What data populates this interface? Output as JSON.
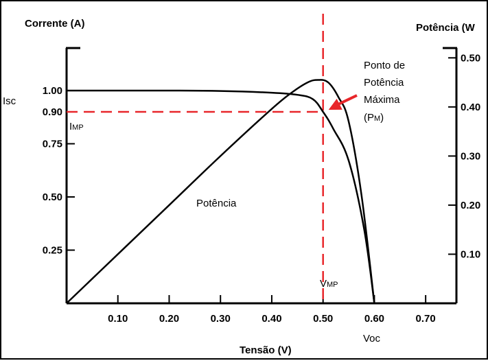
{
  "chart_data": {
    "type": "line",
    "y_left_label": "Corrente (A)",
    "y_right_label": "Potência (W",
    "xlabel": "Tensão (V)",
    "xlim": [
      0,
      0.76
    ],
    "ylim_left": [
      0,
      1.2
    ],
    "ylim_right": [
      0,
      0.52
    ],
    "x_ticks": [
      "0.10",
      "0.20",
      "0.30",
      "0.40",
      "0.50",
      "0.60",
      "0.70"
    ],
    "x_tick_values": [
      0.1,
      0.2,
      0.3,
      0.4,
      0.5,
      0.6,
      0.7
    ],
    "y_left_ticks": [
      "1.00",
      "0.90",
      "0.75",
      "0.50",
      "0.25"
    ],
    "y_left_tick_values": [
      1.0,
      0.9,
      0.75,
      0.5,
      0.25
    ],
    "y_right_ticks": [
      ".0.50",
      ".0.40",
      ".0.30",
      ".0.20",
      ".0.10"
    ],
    "y_right_tick_labels": [
      "0.50",
      "0.40",
      "0.30",
      "0.20",
      "0.10"
    ],
    "y_right_tick_values": [
      0.5,
      0.4,
      0.3,
      0.2,
      0.1
    ],
    "series": [
      {
        "name": "",
        "axis": "left",
        "x": [
          0,
          0.1,
          0.2,
          0.3,
          0.4,
          0.45,
          0.48,
          0.5,
          0.52,
          0.55,
          0.58,
          0.6
        ],
        "y": [
          1.0,
          1.0,
          1.0,
          0.998,
          0.99,
          0.98,
          0.96,
          0.9,
          0.82,
          0.67,
          0.35,
          0.0
        ]
      },
      {
        "name": "Potência",
        "axis": "right",
        "x": [
          0,
          0.1,
          0.2,
          0.3,
          0.4,
          0.44,
          0.47,
          0.49,
          0.51,
          0.53,
          0.55,
          0.575,
          0.6
        ],
        "y": [
          0,
          0.1,
          0.2,
          0.3,
          0.396,
          0.43,
          0.45,
          0.455,
          0.45,
          0.42,
          0.37,
          0.22,
          0.0
        ]
      }
    ],
    "mpp": {
      "x": 0.5,
      "y": 0.9
    },
    "annotations": {
      "isc": "Isc",
      "imp_main": "I",
      "imp_sub": "MP",
      "vmp_main": "V",
      "vmp_sub": "MP",
      "voc": "Voc",
      "power_label": "Potência",
      "mpp_line1": "Ponto de",
      "mpp_line2": "Potência",
      "mpp_line3": "Máxima",
      "mpp_line4_pre": "(P",
      "mpp_line4_sub": "M",
      "mpp_line4_post": ")"
    },
    "colors": {
      "curve": "#000000",
      "marker": "#e8262a",
      "frame_border": "#000000"
    },
    "grid": false
  }
}
